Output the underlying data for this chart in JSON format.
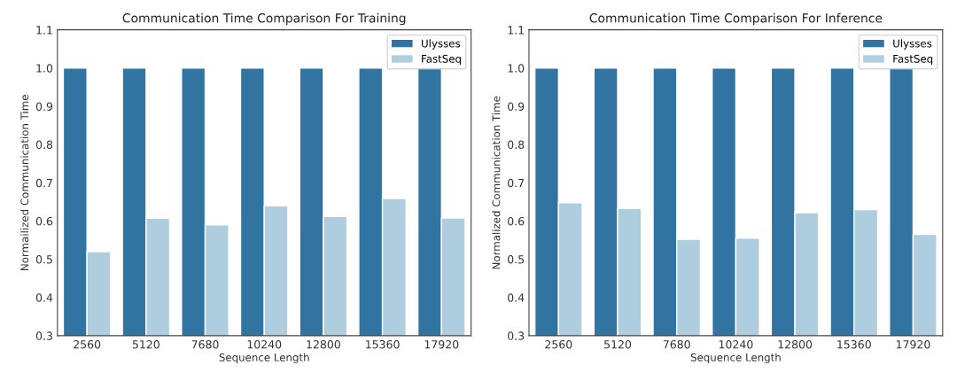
{
  "chart_data": [
    {
      "type": "bar",
      "title": "Communication Time Comparison For Training",
      "xlabel": "Sequence Length",
      "ylabel": "Normailized Communication Time",
      "categories": [
        "2560",
        "5120",
        "7680",
        "10240",
        "12800",
        "15360",
        "17920"
      ],
      "series": [
        {
          "name": "Ulysses",
          "color": "#3274a1",
          "values": [
            1.0,
            1.0,
            1.0,
            1.0,
            1.0,
            1.0,
            1.0
          ]
        },
        {
          "name": "FastSeq",
          "color": "#aecdde",
          "values": [
            0.52,
            0.607,
            0.59,
            0.64,
            0.612,
            0.659,
            0.608
          ]
        }
      ],
      "ylim": [
        0.3,
        1.1
      ],
      "yticks": [
        0.3,
        0.4,
        0.5,
        0.6,
        0.7,
        0.8,
        0.9,
        {
          "value": 1,
          "label": "1.0"
        },
        1.1
      ],
      "grid": false,
      "legend": "top right"
    },
    {
      "type": "bar",
      "title": "Communication Time Comparison For Inference",
      "xlabel": "Sequence Length",
      "ylabel": "Normalized Communication Time",
      "categories": [
        "2560",
        "5120",
        "7680",
        "10240",
        "12800",
        "15360",
        "17920"
      ],
      "series": [
        {
          "name": "Ulysses",
          "color": "#3274a1",
          "values": [
            1.0,
            1.0,
            1.0,
            1.0,
            1.0,
            1.0,
            1.0
          ]
        },
        {
          "name": "FastSeq",
          "color": "#aecdde",
          "values": [
            0.648,
            0.633,
            0.552,
            0.555,
            0.622,
            0.63,
            0.565
          ]
        }
      ],
      "ylim": [
        0.3,
        1.1
      ],
      "yticks": [
        0.3,
        0.4,
        0.5,
        0.6,
        0.7,
        0.8,
        0.9,
        {
          "value": 1,
          "label": "1.0"
        },
        1.1
      ],
      "grid": false,
      "legend": "top right"
    }
  ]
}
